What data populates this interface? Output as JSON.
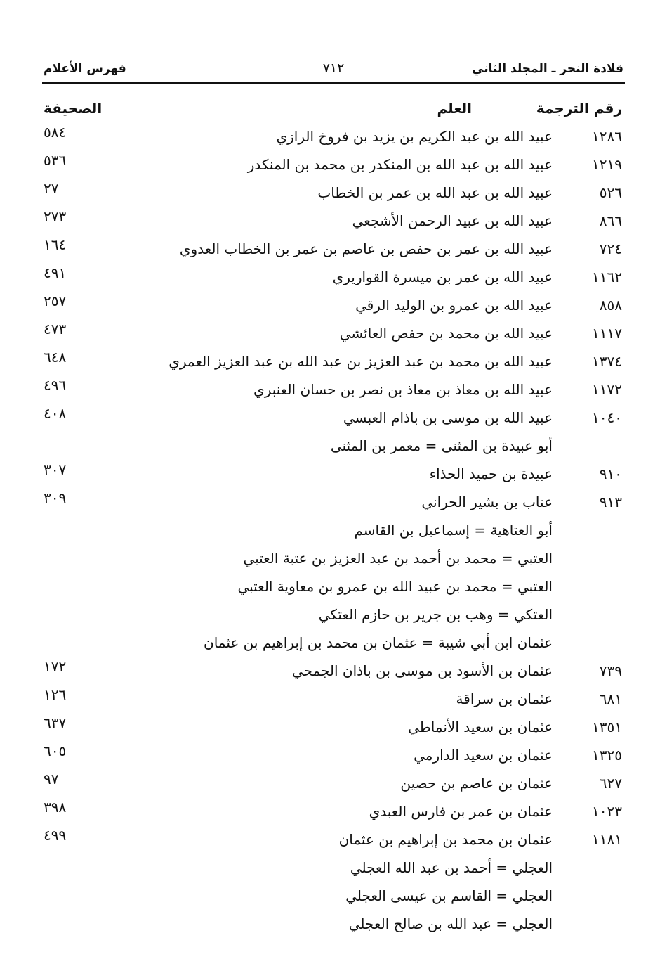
{
  "header": {
    "book_title": "قلادة النحر ـ المجلد الثاني",
    "page_number": "٧١٢",
    "section_title": "فهرس الأعلام"
  },
  "columns": {
    "number": "رقم الترجمة",
    "name": "العلم",
    "page": "الصحيفة"
  },
  "rows": [
    {
      "num": "١٢٨٦",
      "name": "عبيد الله بن عبد الكريم بن يزيد بن فروخ الرازي",
      "page": "٥٨٤"
    },
    {
      "num": "١٢١٩",
      "name": "عبيد الله بن عبد الله بن المنكدر بن محمد بن المنكدر",
      "page": "٥٣٦"
    },
    {
      "num": "٥٢٦",
      "name": "عبيد الله بن عبد الله بن عمر بن الخطاب",
      "page": "٢٧"
    },
    {
      "num": "٨٦٦",
      "name": "عبيد الله بن عبيد الرحمن الأشجعي",
      "page": "٢٧٣"
    },
    {
      "num": "٧٢٤",
      "name": "عبيد الله بن عمر بن حفص بن عاصم بن عمر بن الخطاب العدوي",
      "page": "١٦٤"
    },
    {
      "num": "١١٦٢",
      "name": "عبيد الله بن عمر بن ميسرة القواريري",
      "page": "٤٩١"
    },
    {
      "num": "٨٥٨",
      "name": "عبيد الله بن عمرو بن الوليد الرقي",
      "page": "٢٥٧"
    },
    {
      "num": "١١١٧",
      "name": "عبيد الله بن محمد بن حفص العائشي",
      "page": "٤٧٣"
    },
    {
      "num": "١٣٧٤",
      "name": "عبيد الله بن محمد بن عبد العزيز بن عبد الله بن عبد العزيز العمري",
      "page": "٦٤٨"
    },
    {
      "num": "١١٧٢",
      "name": "عبيد الله بن معاذ بن معاذ بن نصر بن حسان العنبري",
      "page": "٤٩٦"
    },
    {
      "num": "١٠٤٠",
      "name": "عبيد الله بن موسى بن باذام العبسي",
      "page": "٤٠٨"
    },
    {
      "num": "",
      "name": "أبو عبيدة بن المثنى = معمر بن المثنى",
      "page": ""
    },
    {
      "num": "٩١٠",
      "name": "عبيدة بن حميد الحذاء",
      "page": "٣٠٧"
    },
    {
      "num": "٩١٣",
      "name": "عتاب بن بشير الحراني",
      "page": "٣٠٩"
    },
    {
      "num": "",
      "name": "أبو العتاهية = إسماعيل بن القاسم",
      "page": ""
    },
    {
      "num": "",
      "name": "العتبي = محمد بن أحمد بن عبد العزيز بن عتبة العتبي",
      "page": ""
    },
    {
      "num": "",
      "name": "العتبي = محمد بن عبيد الله بن عمرو بن معاوية العتبي",
      "page": ""
    },
    {
      "num": "",
      "name": "العتكي = وهب بن جرير بن حازم العتكي",
      "page": ""
    },
    {
      "num": "",
      "name": "عثمان ابن أبي شيبة = عثمان بن محمد بن إبراهيم بن عثمان",
      "page": ""
    },
    {
      "num": "٧٣٩",
      "name": "عثمان بن الأسود بن موسى بن باذان الجمحي",
      "page": "١٧٢"
    },
    {
      "num": "٦٨١",
      "name": "عثمان بن سراقة",
      "page": "١٢٦"
    },
    {
      "num": "١٣٥١",
      "name": "عثمان بن سعيد الأنماطي",
      "page": "٦٣٧"
    },
    {
      "num": "١٣٢٥",
      "name": "عثمان بن سعيد الدارمي",
      "page": "٦٠٥"
    },
    {
      "num": "٦٢٧",
      "name": "عثمان بن عاصم بن حصين",
      "page": "٩٧"
    },
    {
      "num": "١٠٢٣",
      "name": "عثمان بن عمر بن فارس العبدي",
      "page": "٣٩٨"
    },
    {
      "num": "١١٨١",
      "name": "عثمان بن محمد بن إبراهيم بن عثمان",
      "page": "٤٩٩"
    },
    {
      "num": "",
      "name": "العجلي = أحمد بن عبد الله العجلي",
      "page": ""
    },
    {
      "num": "",
      "name": "العجلي = القاسم بن عيسى العجلي",
      "page": ""
    },
    {
      "num": "",
      "name": "العجلي = عبد الله بن صالح العجلي",
      "page": ""
    }
  ]
}
